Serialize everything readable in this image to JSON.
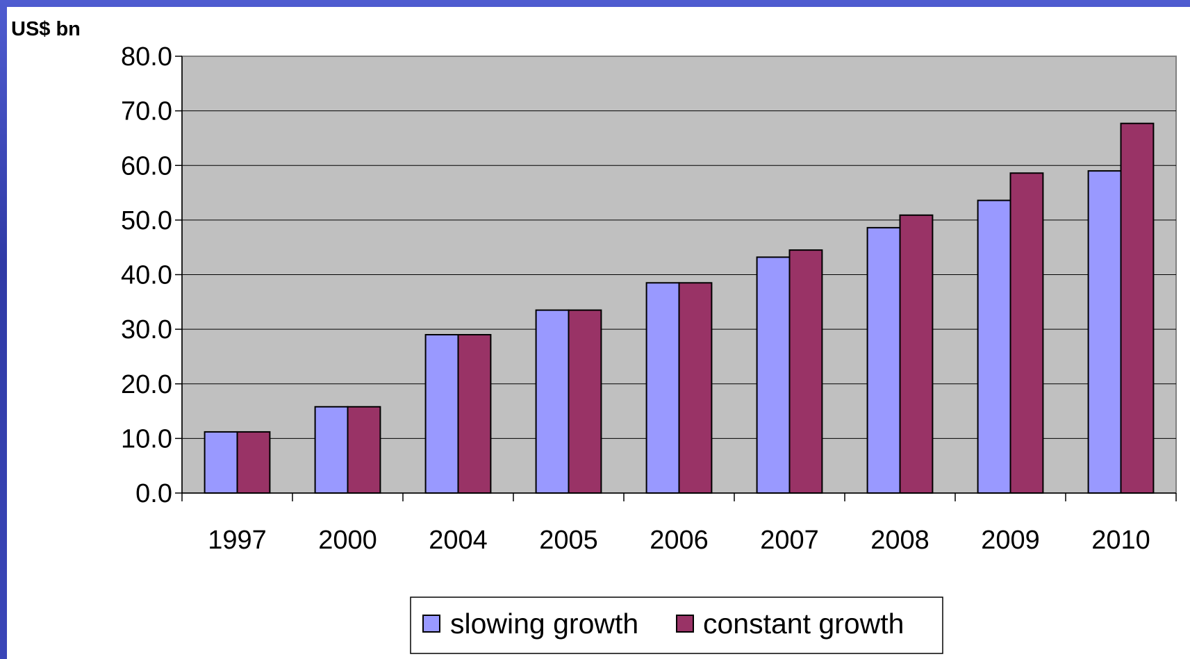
{
  "chart_data": {
    "type": "bar",
    "title": "",
    "ylabel": "US$ bn",
    "xlabel": "",
    "categories": [
      "1997",
      "2000",
      "2004",
      "2005",
      "2006",
      "2007",
      "2008",
      "2009",
      "2010"
    ],
    "series": [
      {
        "name": "slowing growth",
        "color": "#9999ff",
        "values": [
          11.2,
          15.8,
          29.0,
          33.5,
          38.5,
          43.2,
          48.6,
          53.6,
          59.0
        ]
      },
      {
        "name": "constant growth",
        "color": "#993366",
        "values": [
          11.2,
          15.8,
          29.0,
          33.5,
          38.5,
          44.5,
          50.9,
          58.6,
          67.7
        ]
      }
    ],
    "ylim": [
      0,
      80
    ],
    "yticks": [
      "0.0",
      "10.0",
      "20.0",
      "30.0",
      "40.0",
      "50.0",
      "60.0",
      "70.0",
      "80.0"
    ],
    "grid": true,
    "plot_background": "#c0c0c0",
    "legend_position": "bottom-center"
  }
}
